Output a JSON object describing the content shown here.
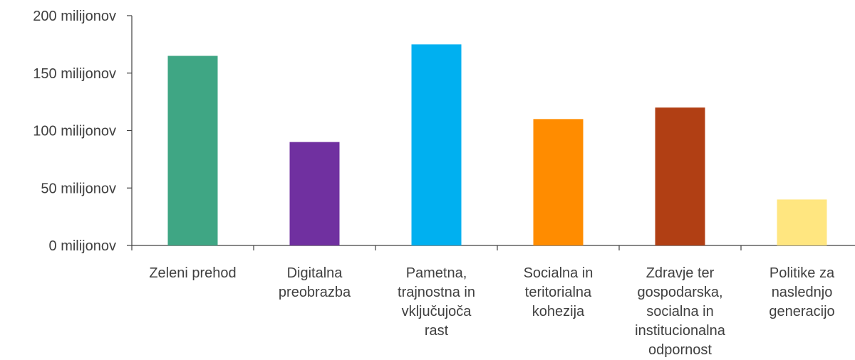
{
  "chart_data": {
    "type": "bar",
    "categories": [
      [
        "Zeleni prehod"
      ],
      [
        "Digitalna",
        "preobrazba"
      ],
      [
        "Pametna,",
        "trajnostna in",
        "vključujoča",
        "rast"
      ],
      [
        "Socialna in",
        "teritorialna",
        "kohezija"
      ],
      [
        "Zdravje ter",
        "gospodarska,",
        "socialna in",
        "institucionalna",
        "odpornost"
      ],
      [
        "Politike za",
        "naslednjo",
        "generacijo"
      ]
    ],
    "values": [
      165000000,
      90000000,
      175000000,
      110000000,
      120000000,
      40000000
    ],
    "colors": [
      "#3fa684",
      "#7030a0",
      "#00b0f0",
      "#ff8c00",
      "#b13f14",
      "#ffe680"
    ],
    "ylim": [
      0,
      200000000
    ],
    "yticks": [
      {
        "value": 0,
        "label": "0 milijonov"
      },
      {
        "value": 50000000,
        "label": "50 milijonov"
      },
      {
        "value": 100000000,
        "label": "100 milijonov"
      },
      {
        "value": 150000000,
        "label": "150 milijonov"
      },
      {
        "value": 200000000,
        "label": "200 milijonov"
      }
    ],
    "title": "",
    "xlabel": "",
    "ylabel": "",
    "grid": false,
    "legend": "none",
    "axis_color": "#404040"
  }
}
